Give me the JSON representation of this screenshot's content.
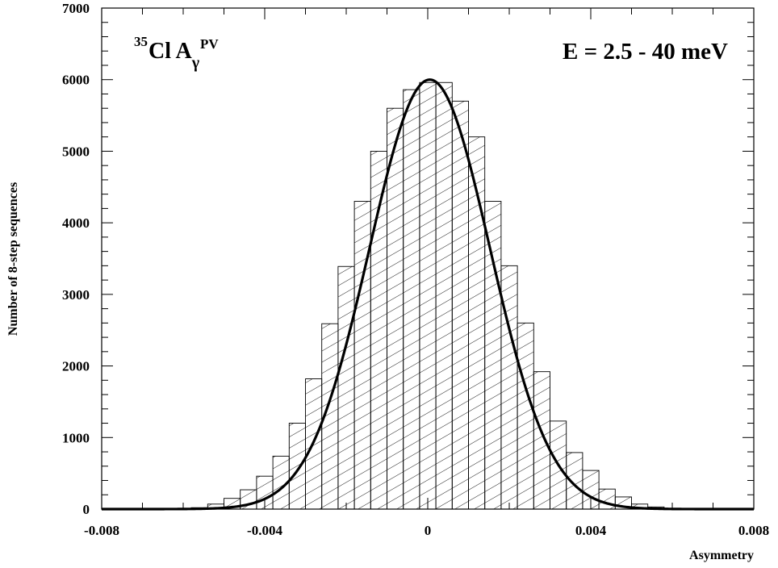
{
  "chart_data": {
    "type": "bar",
    "subtype": "histogram-with-fit",
    "title": "",
    "annotations": {
      "isotope": "35",
      "element": "Cl A",
      "sub": "γ",
      "sup": "PV",
      "energy": "E = 2.5 - 40 meV"
    },
    "xlabel": "Asymmetry",
    "ylabel": "Number of 8-step sequences",
    "xlim": [
      -0.008,
      0.008
    ],
    "ylim": [
      0,
      7000
    ],
    "x_ticks": [
      -0.008,
      -0.004,
      0,
      0.004,
      0.008
    ],
    "x_tick_labels": [
      "-0.008",
      "-0.004",
      "0",
      "0.004",
      "0.008"
    ],
    "y_ticks": [
      0,
      1000,
      2000,
      3000,
      4000,
      5000,
      6000,
      7000
    ],
    "y_tick_labels": [
      "0",
      "1000",
      "2000",
      "3000",
      "4000",
      "5000",
      "6000",
      "7000"
    ],
    "grid": false,
    "bin_width": 0.0004,
    "bin_centers": [
      -0.0064,
      -0.006,
      -0.0056,
      -0.0052,
      -0.0048,
      -0.0044,
      -0.004,
      -0.0036,
      -0.0032,
      -0.0028,
      -0.0024,
      -0.002,
      -0.0016,
      -0.0012,
      -0.0008,
      -0.0004,
      0.0,
      0.0004,
      0.0008,
      0.0012,
      0.0016,
      0.002,
      0.0024,
      0.0028,
      0.0032,
      0.0036,
      0.004,
      0.0044,
      0.0048,
      0.0052,
      0.0056,
      0.006,
      0.0064
    ],
    "values": [
      0,
      5,
      20,
      70,
      150,
      270,
      460,
      740,
      1200,
      1820,
      2590,
      3390,
      4300,
      5000,
      5600,
      5860,
      5960,
      5960,
      5700,
      5200,
      4300,
      3400,
      2600,
      1920,
      1230,
      790,
      540,
      280,
      170,
      70,
      30,
      10,
      0
    ],
    "series": [
      {
        "name": "",
        "kind": "histogram",
        "hatch": "diagonal"
      },
      {
        "name": "",
        "kind": "gaussian-fit",
        "params": {
          "amplitude": 6000,
          "mean": 5e-05,
          "sigma": 0.00148
        }
      }
    ],
    "colors": {
      "bars": "#000000",
      "fit": "#000000",
      "background": "#ffffff"
    }
  }
}
